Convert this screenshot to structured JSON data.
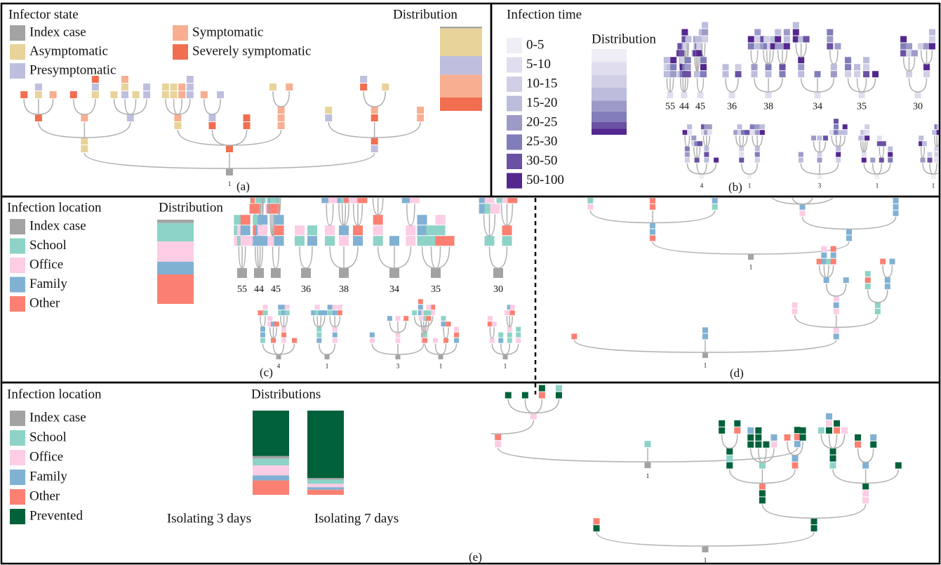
{
  "panel_a": {
    "caption": "(a)",
    "legend_title": "Infector state",
    "legend": [
      {
        "label": "Index case",
        "color": "#a3a3a3"
      },
      {
        "label": "Asymptomatic",
        "color": "#e8d49a"
      },
      {
        "label": "Presymptomatic",
        "color": "#bebfdf"
      },
      {
        "label": "Symptomatic",
        "color": "#f8ae90"
      },
      {
        "label": "Severely symptomatic",
        "color": "#f16e50"
      }
    ],
    "distribution_title": "Distribution",
    "distribution": [
      2,
      33,
      22,
      27,
      16
    ],
    "tree_labels": [
      "1"
    ]
  },
  "panel_b": {
    "caption": "(b)",
    "legend_title": "Infection time",
    "legend": [
      {
        "label": "0-5",
        "color": "#efedf5"
      },
      {
        "label": "5-10",
        "color": "#e0deee"
      },
      {
        "label": "10-15",
        "color": "#d0cfe6"
      },
      {
        "label": "15-20",
        "color": "#bcbddc"
      },
      {
        "label": "20-25",
        "color": "#9e9ac8"
      },
      {
        "label": "25-30",
        "color": "#807dba"
      },
      {
        "label": "30-50",
        "color": "#6a51a3"
      },
      {
        "label": "50-100",
        "color": "#54278f"
      }
    ],
    "distribution_title": "Distribution",
    "distribution": [
      15,
      15,
      15,
      15,
      13,
      12,
      8,
      7
    ],
    "tree_labels": [
      "55",
      "44",
      "45",
      "36",
      "38",
      "34",
      "35",
      "30",
      "4",
      "1",
      "3",
      "1",
      "1"
    ]
  },
  "panel_c": {
    "caption": "(c)",
    "legend_title": "Infection location",
    "legend": [
      {
        "label": "Index case",
        "color": "#a3a3a3"
      },
      {
        "label": "School",
        "color": "#8dd3c7"
      },
      {
        "label": "Office",
        "color": "#fccde5"
      },
      {
        "label": "Family",
        "color": "#80b1d3"
      },
      {
        "label": "Other",
        "color": "#fb8072"
      }
    ],
    "distribution_title": "Distribution",
    "distribution": [
      4,
      22,
      24,
      15,
      35
    ],
    "tree_labels": [
      "55",
      "44",
      "45",
      "36",
      "38",
      "34",
      "35",
      "30",
      "4",
      "1",
      "3",
      "1",
      "1"
    ]
  },
  "panel_d": {
    "caption": "(d)",
    "tree_labels": [
      "1",
      "1"
    ]
  },
  "panel_e": {
    "caption": "(e)",
    "legend_title": "Infection location",
    "legend": [
      {
        "label": "Index case",
        "color": "#a3a3a3"
      },
      {
        "label": "School",
        "color": "#8dd3c7"
      },
      {
        "label": "Office",
        "color": "#fccde5"
      },
      {
        "label": "Family",
        "color": "#80b1d3"
      },
      {
        "label": "Other",
        "color": "#fb8072"
      },
      {
        "label": "Prevented",
        "color": "#00613a"
      }
    ],
    "distributions_title": "Distributions",
    "distributions": [
      {
        "label": "Isolating 3 days",
        "values": [
          3,
          8,
          12,
          6,
          17,
          54
        ]
      },
      {
        "label": "Isolating 7 days",
        "values": [
          2,
          5,
          4,
          3,
          6,
          80
        ]
      }
    ],
    "tree_labels": [
      "1",
      "1"
    ]
  }
}
